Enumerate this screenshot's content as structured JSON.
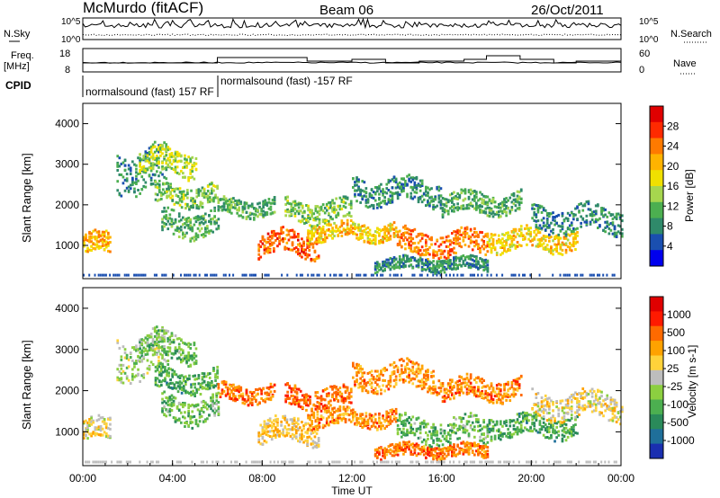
{
  "header": {
    "station": "McMurdo (fitACF)",
    "beam": "Beam 06",
    "date": "26/Oct/2011"
  },
  "top_panels": {
    "nsky_label": "N.Sky",
    "nsearch_label": "N.Search",
    "noise_left_ticks": [
      "10^5",
      "10^0"
    ],
    "noise_right_ticks": [
      "10^5",
      "10^0"
    ],
    "freq_label": "Freq.",
    "freq_unit": "[MHz]",
    "freq_ticks": [
      "18",
      "8"
    ],
    "nave_label": "Nave",
    "nave_ticks": [
      "60",
      "0"
    ],
    "cpid_label": "CPID",
    "cpid_entries": [
      {
        "text": "normalsound (fast) 157 RF",
        "start_hour": 0.0
      },
      {
        "text": "normalsound (fast) -157 RF",
        "start_hour": 6.0
      }
    ]
  },
  "colors": {
    "power_scale": [
      "#0000ee",
      "#1a4fb0",
      "#2f8a6a",
      "#4caf50",
      "#a6d64e",
      "#f0e000",
      "#ffb300",
      "#ff7a00",
      "#ff2a00",
      "#e00000"
    ],
    "velocity_scale": [
      "#1a2fb0",
      "#1f6f9a",
      "#2a8a5a",
      "#4caf50",
      "#8ccf40",
      "#bdbdbd",
      "#ffd23a",
      "#ffa200",
      "#ff6a00",
      "#ff1a00",
      "#e00000"
    ]
  },
  "chart_data": [
    {
      "type": "heatmap",
      "panel": "power",
      "ylabel": "Slant Range [km]",
      "yticks": [
        "1000",
        "2000",
        "3000",
        "4000"
      ],
      "ylim": [
        180,
        4500
      ],
      "xlim_hours": [
        0,
        24
      ],
      "colorbar_label": "Power [dB]",
      "colorbar_ticks": [
        "4",
        "8",
        "12",
        "16",
        "20",
        "24",
        "28"
      ],
      "colorbar_range": [
        0,
        30
      ],
      "bands": [
        {
          "t0": 0.0,
          "t1": 1.2,
          "r": 1000,
          "w": 250,
          "v": 20
        },
        {
          "t0": 1.5,
          "t1": 3.8,
          "r": 2800,
          "w": 500,
          "v": 8
        },
        {
          "t0": 2.5,
          "t1": 5.0,
          "r": 3000,
          "w": 300,
          "v": 14
        },
        {
          "t0": 3.2,
          "t1": 6.0,
          "r": 2200,
          "w": 250,
          "v": 12
        },
        {
          "t0": 3.5,
          "t1": 6.0,
          "r": 1500,
          "w": 300,
          "v": 10
        },
        {
          "t0": 6.0,
          "t1": 8.5,
          "r": 1900,
          "w": 200,
          "v": 10
        },
        {
          "t0": 7.8,
          "t1": 10.5,
          "r": 1000,
          "w": 280,
          "v": 24
        },
        {
          "t0": 9.0,
          "t1": 12.0,
          "r": 1800,
          "w": 250,
          "v": 12
        },
        {
          "t0": 10.0,
          "t1": 14.0,
          "r": 1300,
          "w": 200,
          "v": 18
        },
        {
          "t0": 12.0,
          "t1": 16.0,
          "r": 2300,
          "w": 300,
          "v": 8
        },
        {
          "t0": 14.0,
          "t1": 18.0,
          "r": 1000,
          "w": 300,
          "v": 22
        },
        {
          "t0": 16.0,
          "t1": 19.5,
          "r": 2000,
          "w": 250,
          "v": 10
        },
        {
          "t0": 18.0,
          "t1": 22.0,
          "r": 1100,
          "w": 250,
          "v": 18
        },
        {
          "t0": 20.0,
          "t1": 24.0,
          "r": 1600,
          "w": 300,
          "v": 8
        },
        {
          "t0": 13.0,
          "t1": 18.0,
          "r": 500,
          "w": 150,
          "v": 8
        }
      ]
    },
    {
      "type": "heatmap",
      "panel": "velocity",
      "ylabel": "Slant Range [km]",
      "yticks": [
        "1000",
        "2000",
        "3000",
        "4000"
      ],
      "ylim": [
        180,
        4500
      ],
      "xlim_hours": [
        0,
        24
      ],
      "xticks": [
        "00:00",
        "04:00",
        "08:00",
        "12:00",
        "16:00",
        "20:00",
        "00:00"
      ],
      "xlabel": "Time UT",
      "colorbar_label": "Velocity [m s-1]",
      "colorbar_ticks": [
        "1000",
        "500",
        "100",
        "25",
        "-25",
        "-100",
        "-500",
        "-1000"
      ],
      "bands": [
        {
          "t0": 0.0,
          "t1": 1.2,
          "r": 1000,
          "w": 250,
          "v": 0.55
        },
        {
          "t0": 1.5,
          "t1": 3.8,
          "r": 2800,
          "w": 500,
          "v": 0.45
        },
        {
          "t0": 2.5,
          "t1": 5.0,
          "r": 3000,
          "w": 300,
          "v": 0.35
        },
        {
          "t0": 3.2,
          "t1": 6.0,
          "r": 2200,
          "w": 250,
          "v": 0.3
        },
        {
          "t0": 3.5,
          "t1": 6.0,
          "r": 1500,
          "w": 300,
          "v": 0.35
        },
        {
          "t0": 6.0,
          "t1": 8.5,
          "r": 1900,
          "w": 200,
          "v": 0.75
        },
        {
          "t0": 7.8,
          "t1": 10.5,
          "r": 1000,
          "w": 280,
          "v": 0.6
        },
        {
          "t0": 9.0,
          "t1": 12.0,
          "r": 1800,
          "w": 250,
          "v": 0.78
        },
        {
          "t0": 10.0,
          "t1": 14.0,
          "r": 1300,
          "w": 200,
          "v": 0.72
        },
        {
          "t0": 12.0,
          "t1": 16.0,
          "r": 2300,
          "w": 300,
          "v": 0.7
        },
        {
          "t0": 14.0,
          "t1": 18.0,
          "r": 1000,
          "w": 300,
          "v": 0.35
        },
        {
          "t0": 16.0,
          "t1": 19.5,
          "r": 2000,
          "w": 250,
          "v": 0.72
        },
        {
          "t0": 18.0,
          "t1": 22.0,
          "r": 1100,
          "w": 250,
          "v": 0.3
        },
        {
          "t0": 20.0,
          "t1": 24.0,
          "r": 1600,
          "w": 300,
          "v": 0.55
        },
        {
          "t0": 13.0,
          "t1": 18.0,
          "r": 500,
          "w": 150,
          "v": 0.75
        }
      ]
    }
  ]
}
